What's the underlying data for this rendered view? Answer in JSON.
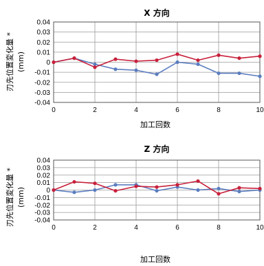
{
  "colors": {
    "blue": "#5b7dc0",
    "red": "#c8203b",
    "grid": "#9a9a9a",
    "axis": "#555555"
  },
  "chart_data": [
    {
      "type": "line",
      "title": "X 方向",
      "xlabel": "加工回数",
      "ylabel": "刃先位置変化量 *",
      "yunit": "(mm)",
      "xlim": [
        0,
        10
      ],
      "ylim": [
        -0.04,
        0.04
      ],
      "xticks": [
        "0",
        "2",
        "4",
        "6",
        "8",
        "10"
      ],
      "yticks": [
        "0.04",
        "0.03",
        "0.02",
        "0.01",
        "0",
        "-0.01",
        "-0.02",
        "-0.03",
        "-0.04"
      ],
      "grid": true,
      "x": [
        0,
        1,
        2,
        3,
        4,
        5,
        6,
        7,
        8,
        9,
        10
      ],
      "series": [
        {
          "color": "blue",
          "values": [
            0.0,
            0.004,
            -0.002,
            -0.007,
            -0.008,
            -0.012,
            0.0,
            -0.002,
            -0.011,
            -0.011,
            -0.014
          ]
        },
        {
          "color": "red",
          "values": [
            0.0,
            0.004,
            -0.005,
            0.003,
            0.001,
            0.002,
            0.008,
            0.002,
            0.007,
            0.004,
            0.006
          ]
        }
      ]
    },
    {
      "type": "line",
      "title": "Z 方向",
      "xlabel": "加工回数",
      "ylabel": "刃先位置変化量 *",
      "yunit": "(mm)",
      "xlim": [
        0,
        10
      ],
      "ylim": [
        -0.04,
        0.04
      ],
      "xticks": [
        "0",
        "2",
        "4",
        "6",
        "8",
        "10"
      ],
      "yticks": [
        "0.04",
        "0.03",
        "0.02",
        "0.01",
        "0",
        "-0.01",
        "-0.02",
        "-0.03",
        "-0.04"
      ],
      "grid": true,
      "x": [
        0,
        1,
        2,
        3,
        4,
        5,
        6,
        7,
        8,
        9,
        10
      ],
      "series": [
        {
          "color": "blue",
          "values": [
            0.0,
            -0.003,
            0.0,
            0.007,
            0.007,
            -0.001,
            0.004,
            0.0,
            0.002,
            -0.002,
            0.0
          ]
        },
        {
          "color": "red",
          "values": [
            0.0,
            0.011,
            0.009,
            -0.001,
            0.005,
            0.004,
            0.007,
            0.012,
            -0.005,
            0.003,
            0.002
          ]
        }
      ]
    }
  ]
}
